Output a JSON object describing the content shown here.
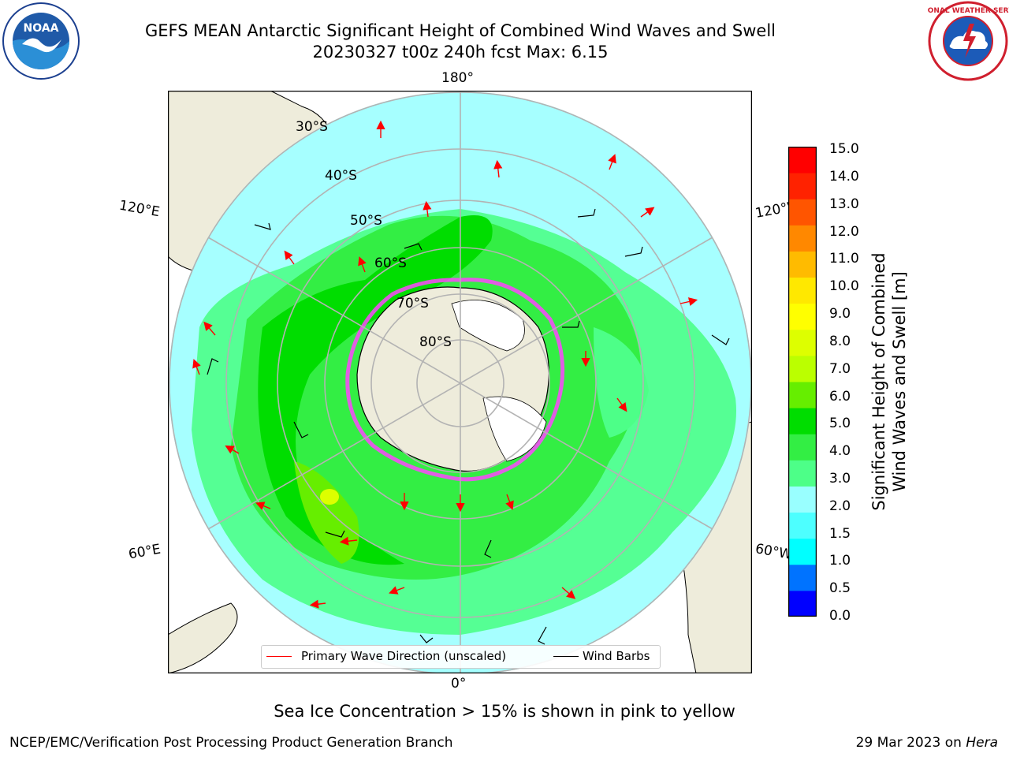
{
  "title": {
    "line1": "GEFS MEAN Antarctic Significant Height of Combined Wind Waves and Swell",
    "line2": "20230327 t00z 240h fcst   Max: 6.15"
  },
  "map": {
    "meridian_labels": {
      "top": "180°",
      "bottom": "0°",
      "upper_left": "120°E",
      "lower_left": "60°E",
      "upper_right": "120°W",
      "lower_right": "60°W"
    },
    "latitude_labels": [
      "30°S",
      "40°S",
      "50°S",
      "60°S",
      "70°S",
      "80°S"
    ],
    "colors": {
      "land": "#eeecdb",
      "ocean_base": "#a6ffff",
      "grid": "#b3b3b3",
      "wave_arrow": "#ff0000",
      "wind_barb": "#000000",
      "sea_ice_edge": "#ff44ff"
    }
  },
  "colorbar": {
    "label_line1": "Significant Height of Combined",
    "label_line2": "Wind Waves and Swell [m]",
    "ticks": [
      "15.0",
      "14.0",
      "13.0",
      "12.0",
      "11.0",
      "10.0",
      "9.0",
      "8.0",
      "7.0",
      "6.0",
      "5.0",
      "4.0",
      "3.0",
      "2.0",
      "1.5",
      "1.0",
      "0.5",
      "0.0"
    ],
    "colors_bottom_to_top": [
      "#0000ff",
      "#0073ff",
      "#00ffff",
      "#4dffff",
      "#99ffff",
      "#4dff88",
      "#33ee44",
      "#00dd00",
      "#66ee00",
      "#bbff00",
      "#ddff00",
      "#ffff00",
      "#ffe800",
      "#ffbb00",
      "#ff8800",
      "#ff5500",
      "#ff2200",
      "#ff0000"
    ]
  },
  "legend": {
    "wave": "Primary Wave Direction (unscaled)",
    "wind": "Wind Barbs"
  },
  "note": "Sea Ice Concentration > 15% is shown in pink to yellow",
  "footer": {
    "left": "NCEP/EMC/Verification Post Processing Product Generation Branch",
    "right_prefix": "29 Mar 2023 on ",
    "right_host": "Hera"
  },
  "logos": {
    "noaa_text": "NOAA",
    "nws_text": "NATIONAL WEATHER SERVICE"
  }
}
